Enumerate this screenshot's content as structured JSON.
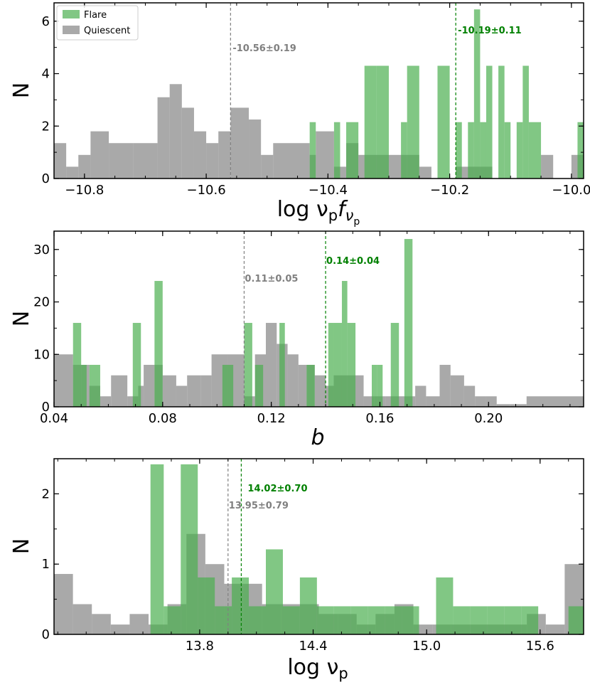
{
  "legend": {
    "flare_label": "Flare",
    "quiescent_label": "Quiescent"
  },
  "colors": {
    "flare": "#4caf50",
    "quiescent": "#8c8c8c",
    "flare_text": "#008000",
    "quiescent_text": "#808080"
  },
  "chart_data": [
    {
      "type": "histogram",
      "id": "panel1",
      "xlabel": "log νpfνp",
      "ylabel": "N",
      "xlim": [
        -10.85,
        -9.98
      ],
      "ylim": [
        0,
        6.7
      ],
      "xticks": [
        -10.8,
        -10.6,
        -10.4,
        -10.2,
        -10.0
      ],
      "xtick_labels": [
        "−10.8",
        "−10.6",
        "−10.4",
        "−10.2",
        "−10.0"
      ],
      "yticks": [
        0,
        2,
        4,
        6
      ],
      "ytick_labels": [
        "0",
        "2",
        "4",
        "6"
      ],
      "series": [
        {
          "name": "Quiescent",
          "bins": [
            [
              -10.85,
              -10.83,
              1.35
            ],
            [
              -10.83,
              -10.81,
              0.45
            ],
            [
              -10.81,
              -10.79,
              0.9
            ],
            [
              -10.79,
              -10.76,
              1.8
            ],
            [
              -10.76,
              -10.72,
              1.35
            ],
            [
              -10.72,
              -10.68,
              1.35
            ],
            [
              -10.68,
              -10.66,
              3.1
            ],
            [
              -10.66,
              -10.64,
              3.6
            ],
            [
              -10.64,
              -10.62,
              2.7
            ],
            [
              -10.62,
              -10.6,
              1.8
            ],
            [
              -10.6,
              -10.58,
              1.35
            ],
            [
              -10.58,
              -10.56,
              1.8
            ],
            [
              -10.56,
              -10.53,
              2.7
            ],
            [
              -10.53,
              -10.51,
              2.25
            ],
            [
              -10.51,
              -10.49,
              0.9
            ],
            [
              -10.49,
              -10.43,
              1.35
            ],
            [
              -10.43,
              -10.42,
              0.9
            ],
            [
              -10.42,
              -10.39,
              1.8
            ],
            [
              -10.39,
              -10.37,
              0.45
            ],
            [
              -10.37,
              -10.35,
              1.35
            ],
            [
              -10.35,
              -10.28,
              0.9
            ],
            [
              -10.28,
              -10.25,
              0.9
            ],
            [
              -10.25,
              -10.23,
              0.45
            ],
            [
              -10.19,
              -10.13,
              0.45
            ],
            [
              -10.05,
              -10.03,
              0.9
            ],
            [
              -10.0,
              -9.98,
              0.9
            ]
          ]
        },
        {
          "name": "Flare",
          "bins": [
            [
              -10.43,
              -10.42,
              2.15
            ],
            [
              -10.39,
              -10.38,
              2.15
            ],
            [
              -10.37,
              -10.35,
              2.15
            ],
            [
              -10.34,
              -10.32,
              4.3
            ],
            [
              -10.32,
              -10.3,
              4.3
            ],
            [
              -10.28,
              -10.27,
              2.15
            ],
            [
              -10.27,
              -10.25,
              4.3
            ],
            [
              -10.22,
              -10.2,
              4.3
            ],
            [
              -10.19,
              -10.18,
              2.15
            ],
            [
              -10.17,
              -10.16,
              2.15
            ],
            [
              -10.16,
              -10.15,
              6.45
            ],
            [
              -10.15,
              -10.14,
              2.15
            ],
            [
              -10.14,
              -10.13,
              4.3
            ],
            [
              -10.12,
              -10.11,
              4.3
            ],
            [
              -10.11,
              -10.1,
              2.15
            ],
            [
              -10.09,
              -10.08,
              2.15
            ],
            [
              -10.08,
              -10.07,
              4.3
            ],
            [
              -10.07,
              -10.05,
              2.15
            ],
            [
              -9.99,
              -9.98,
              2.15
            ]
          ]
        }
      ],
      "medians": [
        {
          "series": "Quiescent",
          "x": -10.56,
          "label": "-10.56±0.19"
        },
        {
          "series": "Flare",
          "x": -10.19,
          "label": "-10.19±0.11"
        }
      ]
    },
    {
      "type": "histogram",
      "id": "panel2",
      "xlabel": "b",
      "ylabel": "N",
      "xlim": [
        0.04,
        0.235
      ],
      "ylim": [
        0,
        33.5
      ],
      "xticks": [
        0.04,
        0.08,
        0.12,
        0.16,
        0.2
      ],
      "xtick_labels": [
        "0.04",
        "0.08",
        "0.12",
        "0.16",
        "0.20"
      ],
      "yticks": [
        0,
        10,
        20,
        30
      ],
      "ytick_labels": [
        "0",
        "10",
        "20",
        "30"
      ],
      "series": [
        {
          "name": "Quiescent",
          "bins": [
            [
              0.04,
              0.047,
              10
            ],
            [
              0.047,
              0.053,
              8
            ],
            [
              0.053,
              0.057,
              4
            ],
            [
              0.057,
              0.061,
              2
            ],
            [
              0.061,
              0.067,
              6
            ],
            [
              0.067,
              0.071,
              2
            ],
            [
              0.071,
              0.073,
              4
            ],
            [
              0.073,
              0.077,
              8
            ],
            [
              0.077,
              0.08,
              8
            ],
            [
              0.08,
              0.085,
              6
            ],
            [
              0.085,
              0.089,
              4
            ],
            [
              0.089,
              0.094,
              6
            ],
            [
              0.094,
              0.098,
              6
            ],
            [
              0.098,
              0.104,
              10
            ],
            [
              0.104,
              0.11,
              10
            ],
            [
              0.11,
              0.114,
              2
            ],
            [
              0.114,
              0.118,
              10
            ],
            [
              0.118,
              0.122,
              16
            ],
            [
              0.122,
              0.126,
              12
            ],
            [
              0.126,
              0.13,
              10
            ],
            [
              0.13,
              0.133,
              8
            ],
            [
              0.133,
              0.136,
              8
            ],
            [
              0.136,
              0.14,
              6
            ],
            [
              0.14,
              0.143,
              4
            ],
            [
              0.143,
              0.154,
              6
            ],
            [
              0.154,
              0.158,
              2
            ],
            [
              0.158,
              0.162,
              2
            ],
            [
              0.162,
              0.173,
              2
            ],
            [
              0.173,
              0.177,
              4
            ],
            [
              0.177,
              0.182,
              2
            ],
            [
              0.182,
              0.186,
              8
            ],
            [
              0.186,
              0.191,
              6
            ],
            [
              0.191,
              0.195,
              4
            ],
            [
              0.195,
              0.199,
              2
            ],
            [
              0.199,
              0.203,
              2
            ],
            [
              0.203,
              0.208,
              0.5
            ],
            [
              0.208,
              0.214,
              0.5
            ],
            [
              0.214,
              0.235,
              2
            ]
          ]
        },
        {
          "name": "Flare",
          "bins": [
            [
              0.047,
              0.05,
              16
            ],
            [
              0.05,
              0.052,
              8
            ],
            [
              0.053,
              0.057,
              8
            ],
            [
              0.069,
              0.072,
              16
            ],
            [
              0.077,
              0.08,
              24
            ],
            [
              0.102,
              0.104,
              8
            ],
            [
              0.104,
              0.106,
              8
            ],
            [
              0.11,
              0.113,
              16
            ],
            [
              0.114,
              0.117,
              8
            ],
            [
              0.123,
              0.125,
              16
            ],
            [
              0.133,
              0.136,
              8
            ],
            [
              0.141,
              0.143,
              16
            ],
            [
              0.143,
              0.146,
              16
            ],
            [
              0.146,
              0.148,
              24
            ],
            [
              0.148,
              0.151,
              16
            ],
            [
              0.157,
              0.159,
              8
            ],
            [
              0.159,
              0.161,
              8
            ],
            [
              0.164,
              0.167,
              16
            ],
            [
              0.169,
              0.172,
              32
            ]
          ]
        }
      ],
      "medians": [
        {
          "series": "Quiescent",
          "x": 0.11,
          "label": "0.11±0.05"
        },
        {
          "series": "Flare",
          "x": 0.14,
          "label": "0.14±0.04"
        }
      ]
    },
    {
      "type": "histogram",
      "id": "panel3",
      "xlabel": "log νp",
      "ylabel": "N",
      "xlim": [
        13.03,
        15.83
      ],
      "ylim": [
        0,
        2.5
      ],
      "xticks": [
        13.8,
        14.4,
        15.0,
        15.6
      ],
      "xtick_labels": [
        "13.8",
        "14.4",
        "15.0",
        "15.6"
      ],
      "yticks": [
        0,
        1,
        2
      ],
      "ytick_labels": [
        "0",
        "1",
        "2"
      ],
      "series": [
        {
          "name": "Quiescent",
          "bins": [
            [
              13.03,
              13.13,
              0.86
            ],
            [
              13.13,
              13.23,
              0.43
            ],
            [
              13.23,
              13.33,
              0.29
            ],
            [
              13.33,
              13.43,
              0.14
            ],
            [
              13.43,
              13.53,
              0.29
            ],
            [
              13.53,
              13.63,
              0.14
            ],
            [
              13.63,
              13.73,
              0.43
            ],
            [
              13.73,
              13.83,
              1.43
            ],
            [
              13.83,
              13.93,
              1.0
            ],
            [
              13.93,
              14.03,
              0.72
            ],
            [
              14.03,
              14.13,
              0.72
            ],
            [
              14.13,
              14.23,
              0.43
            ],
            [
              14.23,
              14.33,
              0.43
            ],
            [
              14.33,
              14.43,
              0.43
            ],
            [
              14.43,
              14.53,
              0.29
            ],
            [
              14.53,
              14.63,
              0.29
            ],
            [
              14.63,
              14.73,
              0.14
            ],
            [
              14.73,
              14.83,
              0.29
            ],
            [
              14.83,
              14.93,
              0.43
            ],
            [
              14.93,
              15.03,
              0.14
            ],
            [
              15.03,
              15.13,
              0.14
            ],
            [
              15.13,
              15.23,
              0.14
            ],
            [
              15.23,
              15.33,
              0.14
            ],
            [
              15.33,
              15.43,
              0.14
            ],
            [
              15.43,
              15.53,
              0.14
            ],
            [
              15.53,
              15.63,
              0.29
            ],
            [
              15.63,
              15.73,
              0.14
            ],
            [
              15.73,
              15.83,
              1.0
            ]
          ]
        },
        {
          "name": "Flare",
          "bins": [
            [
              13.54,
              13.61,
              2.42
            ],
            [
              13.61,
              13.7,
              0.4
            ],
            [
              13.7,
              13.79,
              2.42
            ],
            [
              13.79,
              13.88,
              0.81
            ],
            [
              13.88,
              13.97,
              0.4
            ],
            [
              13.97,
              14.06,
              0.81
            ],
            [
              14.06,
              14.15,
              0.4
            ],
            [
              14.15,
              14.24,
              1.21
            ],
            [
              14.24,
              14.33,
              0.4
            ],
            [
              14.33,
              14.42,
              0.81
            ],
            [
              14.42,
              14.51,
              0.4
            ],
            [
              14.51,
              14.6,
              0.4
            ],
            [
              14.6,
              14.69,
              0.4
            ],
            [
              14.69,
              14.78,
              0.4
            ],
            [
              14.78,
              14.87,
              0.4
            ],
            [
              14.87,
              14.96,
              0.4
            ],
            [
              15.05,
              15.14,
              0.81
            ],
            [
              15.14,
              15.23,
              0.4
            ],
            [
              15.23,
              15.32,
              0.4
            ],
            [
              15.32,
              15.41,
              0.4
            ],
            [
              15.41,
              15.5,
              0.4
            ],
            [
              15.5,
              15.59,
              0.4
            ],
            [
              15.75,
              15.83,
              0.4
            ]
          ]
        }
      ],
      "medians": [
        {
          "series": "Quiescent",
          "x": 13.95,
          "label": "13.95±0.79"
        },
        {
          "series": "Flare",
          "x": 14.02,
          "label": "14.02±0.70"
        }
      ]
    }
  ]
}
